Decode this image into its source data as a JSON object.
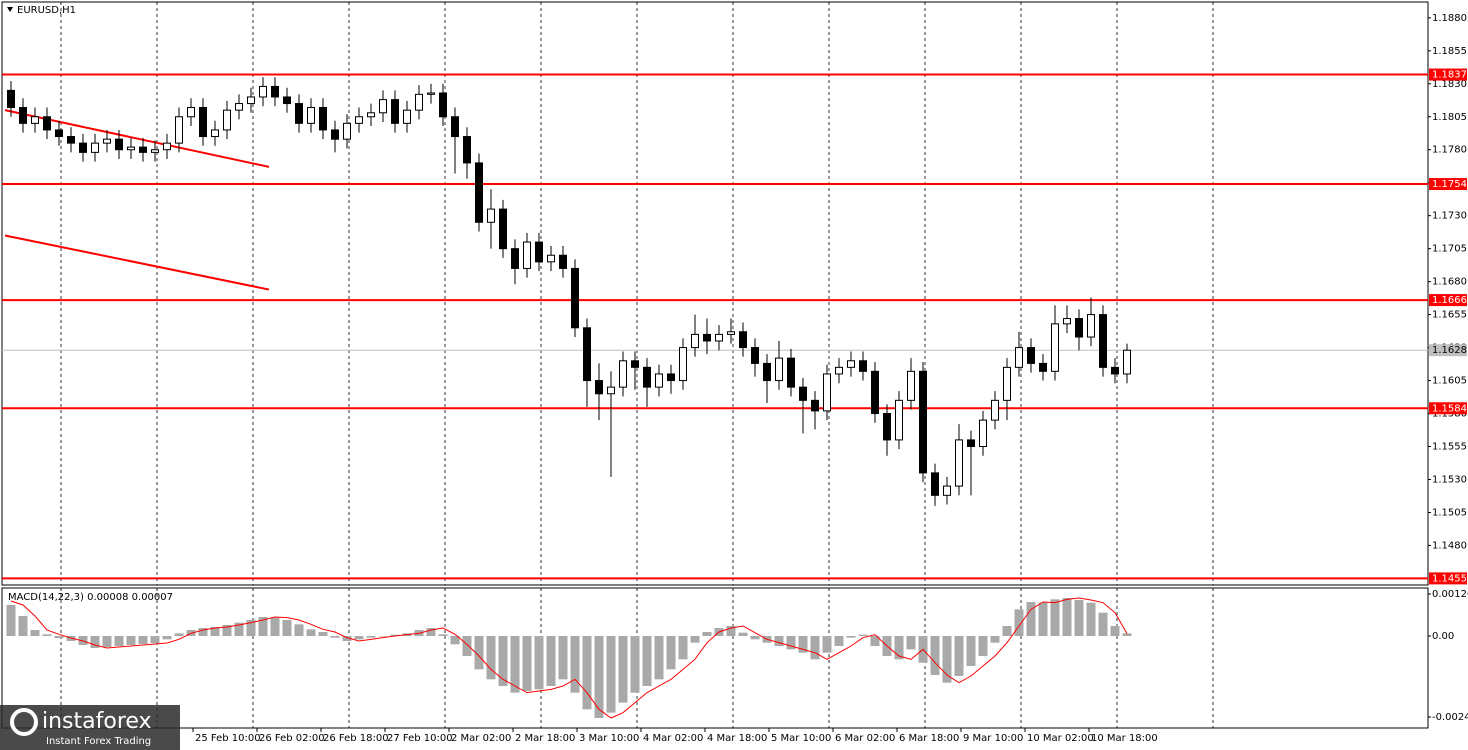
{
  "chart_data": {
    "type": "candlestick",
    "title": "EURUSD,H1",
    "ylim": [
      1.145,
      1.1892
    ],
    "yticks": [
      {
        "value": 1.188,
        "label": "1.1880"
      },
      1.1855,
      {
        "value": 1.183,
        "label": "1.1830"
      },
      1.1805,
      {
        "value": 1.178,
        "label": "1.1780"
      },
      1.1755,
      {
        "value": 1.173,
        "label": "1.1730"
      },
      1.1705,
      {
        "value": 1.168,
        "label": "1.1680"
      },
      1.1655,
      {
        "value": 1.163,
        "label": "1.1630"
      },
      1.1605,
      {
        "value": 1.158,
        "label": "1.1580"
      },
      1.1555,
      {
        "value": 1.153,
        "label": "1.1530"
      },
      1.1505,
      {
        "value": 1.148,
        "label": "1.1480"
      }
    ],
    "xlim": [
      0,
      356
    ],
    "xticks": [
      {
        "value": 47,
        "label": "25 Feb 10:00"
      },
      {
        "value": 63,
        "label": "26 Feb 02:00"
      },
      {
        "value": 79,
        "label": "26 Feb 18:00"
      },
      {
        "value": 95,
        "label": "27 Feb 10:00"
      },
      {
        "value": 111,
        "label": "2 Mar 02:00"
      },
      {
        "value": 127,
        "label": "2 Mar 18:00"
      },
      {
        "value": 143,
        "label": "3 Mar 10:00"
      },
      {
        "value": 159,
        "label": "4 Mar 02:00"
      },
      {
        "value": 175,
        "label": "4 Mar 18:00"
      },
      {
        "value": 191,
        "label": "5 Mar 10:00"
      },
      {
        "value": 207,
        "label": "6 Mar 02:00"
      },
      {
        "value": 223,
        "label": "6 Mar 18:00"
      },
      {
        "value": 239,
        "label": "9 Mar 10:00"
      },
      {
        "value": 255,
        "label": "10 Mar 02:00"
      },
      {
        "value": 271,
        "label": "10 Mar 18:00"
      }
    ],
    "day_separators": [
      14,
      38,
      62,
      86,
      110,
      134,
      158,
      182,
      206,
      230,
      254,
      278,
      302
    ],
    "candles": [
      [
        1.1825,
        1.1832,
        1.1805,
        1.1812
      ],
      [
        1.1812,
        1.1819,
        1.1793,
        1.18
      ],
      [
        1.18,
        1.1812,
        1.1793,
        1.1805
      ],
      [
        1.1805,
        1.1812,
        1.1788,
        1.1795
      ],
      [
        1.1795,
        1.1802,
        1.1783,
        1.179
      ],
      [
        1.179,
        1.1797,
        1.1778,
        1.1785
      ],
      [
        1.1785,
        1.1792,
        1.1771,
        1.1778
      ],
      [
        1.1778,
        1.1792,
        1.1771,
        1.1785
      ],
      [
        1.1785,
        1.1795,
        1.1778,
        1.1788
      ],
      [
        1.1788,
        1.1795,
        1.1773,
        1.178
      ],
      [
        1.178,
        1.1789,
        1.1773,
        1.1782
      ],
      [
        1.1782,
        1.1789,
        1.1771,
        1.1778
      ],
      [
        1.1778,
        1.1787,
        1.1771,
        1.178
      ],
      [
        1.178,
        1.1792,
        1.1773,
        1.1785
      ],
      [
        1.1785,
        1.1812,
        1.1778,
        1.1805
      ],
      [
        1.1805,
        1.1819,
        1.1798,
        1.1812
      ],
      [
        1.1812,
        1.1819,
        1.1783,
        1.179
      ],
      [
        1.179,
        1.1802,
        1.1783,
        1.1795
      ],
      [
        1.1795,
        1.1817,
        1.1788,
        1.181
      ],
      [
        1.181,
        1.1822,
        1.1803,
        1.1815
      ],
      [
        1.1815,
        1.1827,
        1.1808,
        1.182
      ],
      [
        1.182,
        1.1835,
        1.1813,
        1.1828
      ],
      [
        1.1828,
        1.1835,
        1.1813,
        1.182
      ],
      [
        1.182,
        1.1827,
        1.1808,
        1.1815
      ],
      [
        1.1815,
        1.1822,
        1.1793,
        1.18
      ],
      [
        1.18,
        1.1819,
        1.1793,
        1.1812
      ],
      [
        1.1812,
        1.1819,
        1.1788,
        1.1795
      ],
      [
        1.1795,
        1.1802,
        1.1778,
        1.1788
      ],
      [
        1.1788,
        1.1807,
        1.1781,
        1.18
      ],
      [
        1.18,
        1.1812,
        1.1793,
        1.1805
      ],
      [
        1.1805,
        1.1815,
        1.1798,
        1.1808
      ],
      [
        1.1808,
        1.1825,
        1.1801,
        1.1818
      ],
      [
        1.1818,
        1.1825,
        1.1793,
        1.18
      ],
      [
        1.18,
        1.1817,
        1.1793,
        1.181
      ],
      [
        1.181,
        1.1829,
        1.1803,
        1.1822
      ],
      [
        1.1822,
        1.183,
        1.1815,
        1.1823
      ],
      [
        1.1823,
        1.183,
        1.1798,
        1.1805
      ],
      [
        1.1805,
        1.1812,
        1.1762,
        1.179
      ],
      [
        1.179,
        1.1797,
        1.1758,
        1.177
      ],
      [
        1.177,
        1.1777,
        1.1718,
        1.1725
      ],
      [
        1.1725,
        1.175,
        1.1705,
        1.1735
      ],
      [
        1.1735,
        1.1742,
        1.1698,
        1.1705
      ],
      [
        1.1705,
        1.1712,
        1.1678,
        1.169
      ],
      [
        1.169,
        1.1717,
        1.1683,
        1.171
      ],
      [
        1.171,
        1.1717,
        1.1688,
        1.1695
      ],
      [
        1.1695,
        1.1707,
        1.1688,
        1.17
      ],
      [
        1.17,
        1.1707,
        1.1683,
        1.169
      ],
      [
        1.169,
        1.1697,
        1.1638,
        1.1645
      ],
      [
        1.1645,
        1.1652,
        1.1585,
        1.1605
      ],
      [
        1.1605,
        1.1618,
        1.1575,
        1.1595
      ],
      [
        1.1595,
        1.1612,
        1.1532,
        1.16
      ],
      [
        1.16,
        1.1627,
        1.1593,
        1.162
      ],
      [
        1.162,
        1.1627,
        1.1598,
        1.1615
      ],
      [
        1.1615,
        1.1622,
        1.1585,
        1.16
      ],
      [
        1.16,
        1.1617,
        1.1593,
        1.161
      ],
      [
        1.161,
        1.1617,
        1.1595,
        1.1605
      ],
      [
        1.1605,
        1.1637,
        1.1598,
        1.163
      ],
      [
        1.163,
        1.1655,
        1.1623,
        1.164
      ],
      [
        1.164,
        1.1652,
        1.1625,
        1.1635
      ],
      [
        1.1635,
        1.1647,
        1.1628,
        1.164
      ],
      [
        1.164,
        1.1652,
        1.1633,
        1.1642
      ],
      [
        1.1642,
        1.1649,
        1.1623,
        1.163
      ],
      [
        1.163,
        1.1637,
        1.1608,
        1.1618
      ],
      [
        1.1618,
        1.1625,
        1.1588,
        1.1605
      ],
      [
        1.1605,
        1.1635,
        1.1598,
        1.1622
      ],
      [
        1.1622,
        1.1629,
        1.1593,
        1.16
      ],
      [
        1.16,
        1.1607,
        1.1565,
        1.159
      ],
      [
        1.159,
        1.1597,
        1.1568,
        1.1582
      ],
      [
        1.1582,
        1.1617,
        1.1575,
        1.161
      ],
      [
        1.161,
        1.1622,
        1.1603,
        1.1615
      ],
      [
        1.1615,
        1.1627,
        1.1608,
        1.162
      ],
      [
        1.162,
        1.1627,
        1.1605,
        1.1612
      ],
      [
        1.1612,
        1.1619,
        1.1573,
        1.158
      ],
      [
        1.158,
        1.1587,
        1.1548,
        1.156
      ],
      [
        1.156,
        1.1597,
        1.1553,
        1.159
      ],
      [
        1.159,
        1.1622,
        1.1583,
        1.1612
      ],
      [
        1.1612,
        1.1619,
        1.1528,
        1.1535
      ],
      [
        1.1535,
        1.1542,
        1.151,
        1.1518
      ],
      [
        1.1518,
        1.1532,
        1.1511,
        1.1525
      ],
      [
        1.1525,
        1.1572,
        1.1518,
        1.156
      ],
      [
        1.156,
        1.1567,
        1.1518,
        1.1555
      ],
      [
        1.1555,
        1.1582,
        1.1548,
        1.1575
      ],
      [
        1.1575,
        1.1597,
        1.1568,
        1.159
      ],
      [
        1.159,
        1.1622,
        1.1575,
        1.1615
      ],
      [
        1.1615,
        1.1642,
        1.1608,
        1.163
      ],
      [
        1.163,
        1.1637,
        1.1611,
        1.1618
      ],
      [
        1.1618,
        1.1625,
        1.1605,
        1.1612
      ],
      [
        1.1612,
        1.1662,
        1.1605,
        1.1648
      ],
      [
        1.1648,
        1.1662,
        1.1641,
        1.1652
      ],
      [
        1.1652,
        1.1659,
        1.1628,
        1.1638
      ],
      [
        1.1638,
        1.1668,
        1.1631,
        1.1655
      ],
      [
        1.1655,
        1.1662,
        1.1608,
        1.1615
      ],
      [
        1.1615,
        1.1622,
        1.1603,
        1.161
      ],
      [
        1.161,
        1.1633,
        1.1603,
        1.1628
      ]
    ],
    "levels": [
      1.1837,
      1.1754,
      1.1666,
      1.1584,
      1.1455
    ],
    "level_color": "#ff0000",
    "last_price": 1.1628,
    "trendlines": [
      {
        "x": [
          0,
          66
        ],
        "y": [
          1.181,
          1.1767
        ]
      },
      {
        "x": [
          0,
          66
        ],
        "y": [
          1.1715,
          1.1674
        ]
      }
    ],
    "macd": {
      "label": "MACD(14,22,3) 0.00008 0.00007",
      "ylim": [
        -0.00276,
        0.00144
      ],
      "yticks": [
        0.00126,
        {
          "value": 0,
          "label": "0.00"
        },
        -0.00243
      ],
      "histogram": [
        0.00093,
        0.0006,
        0.00018,
        5e-05,
        -6e-05,
        -0.00015,
        -0.00027,
        -0.00036,
        -0.00033,
        -0.0003,
        -0.00027,
        -0.00024,
        -0.00021,
        -0.0001,
        8e-05,
        0.00018,
        0.00024,
        0.00027,
        0.00033,
        0.0004,
        0.00048,
        0.00057,
        0.00055,
        0.00048,
        0.00035,
        0.0002,
        0.00012,
        -5e-05,
        -0.00015,
        -0.0001,
        -5e-05,
        0,
        4e-05,
        8e-05,
        0.00018,
        0.00024,
        5e-05,
        -0.00025,
        -0.0006,
        -0.001,
        -0.0013,
        -0.0015,
        -0.0017,
        -0.00165,
        -0.0016,
        -0.0015,
        -0.0013,
        -0.0017,
        -0.0022,
        -0.00246,
        -0.0023,
        -0.002,
        -0.0017,
        -0.0015,
        -0.0013,
        -0.001,
        -0.0007,
        -0.0002,
        0.00012,
        0.00024,
        0.0003,
        0.0001,
        -0.0001,
        -0.0002,
        -0.0003,
        -0.0004,
        -0.0005,
        -0.0007,
        -0.0005,
        -0.0003,
        -5e-05,
        4e-05,
        -0.0003,
        -0.0006,
        -0.0007,
        -0.0004,
        -0.0008,
        -0.00117,
        -0.0014,
        -0.0012,
        -0.0009,
        -0.0006,
        -0.0002,
        0.0003,
        0.0008,
        0.00102,
        0.001,
        0.0011,
        0.00114,
        0.00108,
        0.001,
        0.0007,
        0.0003,
        8e-05
      ],
      "signal": [
        0.00105,
        0.00093,
        0.0006,
        0.00018,
        5e-05,
        -6e-05,
        -0.00015,
        -0.00027,
        -0.00036,
        -0.00033,
        -0.0003,
        -0.00027,
        -0.00024,
        -0.00021,
        -0.0001,
        8e-05,
        0.00018,
        0.00024,
        0.00027,
        0.00033,
        0.0004,
        0.00048,
        0.00057,
        0.00055,
        0.00048,
        0.00035,
        0.0002,
        0.00012,
        -5e-05,
        -0.00015,
        -0.0001,
        -5e-05,
        0,
        4e-05,
        8e-05,
        0.00018,
        0.00024,
        5e-05,
        -0.00025,
        -0.0006,
        -0.001,
        -0.0013,
        -0.0015,
        -0.0017,
        -0.00165,
        -0.0016,
        -0.0015,
        -0.0013,
        -0.0017,
        -0.0022,
        -0.00246,
        -0.0023,
        -0.002,
        -0.0017,
        -0.0015,
        -0.0013,
        -0.001,
        -0.0007,
        -0.0002,
        0.00012,
        0.00024,
        0.0003,
        0.0001,
        -0.0001,
        -0.0002,
        -0.0003,
        -0.0004,
        -0.0005,
        -0.0007,
        -0.0005,
        -0.0003,
        -5e-05,
        4e-05,
        -0.0003,
        -0.0006,
        -0.0007,
        -0.0004,
        -0.0008,
        -0.00117,
        -0.0014,
        -0.0012,
        -0.0009,
        -0.0006,
        -0.0002,
        0.0003,
        0.0008,
        0.00102,
        0.001,
        0.0011,
        0.00114,
        0.00108,
        0.001,
        0.0007,
        7e-05
      ],
      "histogram_color": "#a9a9a9",
      "signal_color": "#ff0000"
    },
    "watermark": {
      "brand": "instaforex",
      "tagline": "Instant Forex Trading"
    }
  }
}
